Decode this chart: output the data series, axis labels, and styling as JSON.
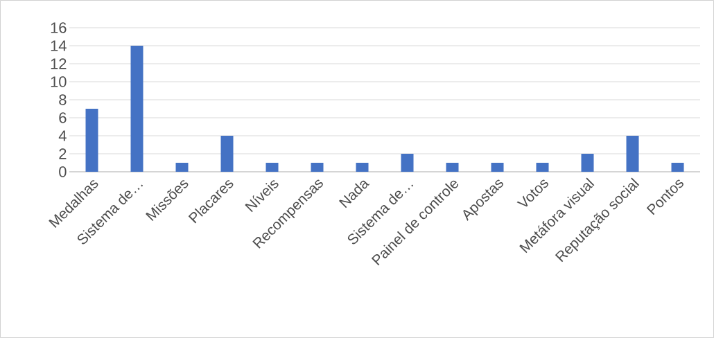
{
  "chart_data": {
    "type": "bar",
    "categories": [
      "Medalhas",
      "Sistema de…",
      "Missões",
      "Placares",
      "Níveis",
      "Recompensas",
      "Nada",
      "Sistema de…",
      "Painel de controle",
      "Apostas",
      "Votos",
      "Metáfora visual",
      "Reputação social",
      "Pontos"
    ],
    "values": [
      7,
      14,
      1,
      4,
      1,
      1,
      1,
      2,
      1,
      1,
      1,
      2,
      4,
      1
    ],
    "color": "#4472c4",
    "ylim": [
      0,
      16
    ],
    "yticks": [
      0,
      2,
      4,
      6,
      8,
      10,
      12,
      14,
      16
    ],
    "grid": "y"
  }
}
